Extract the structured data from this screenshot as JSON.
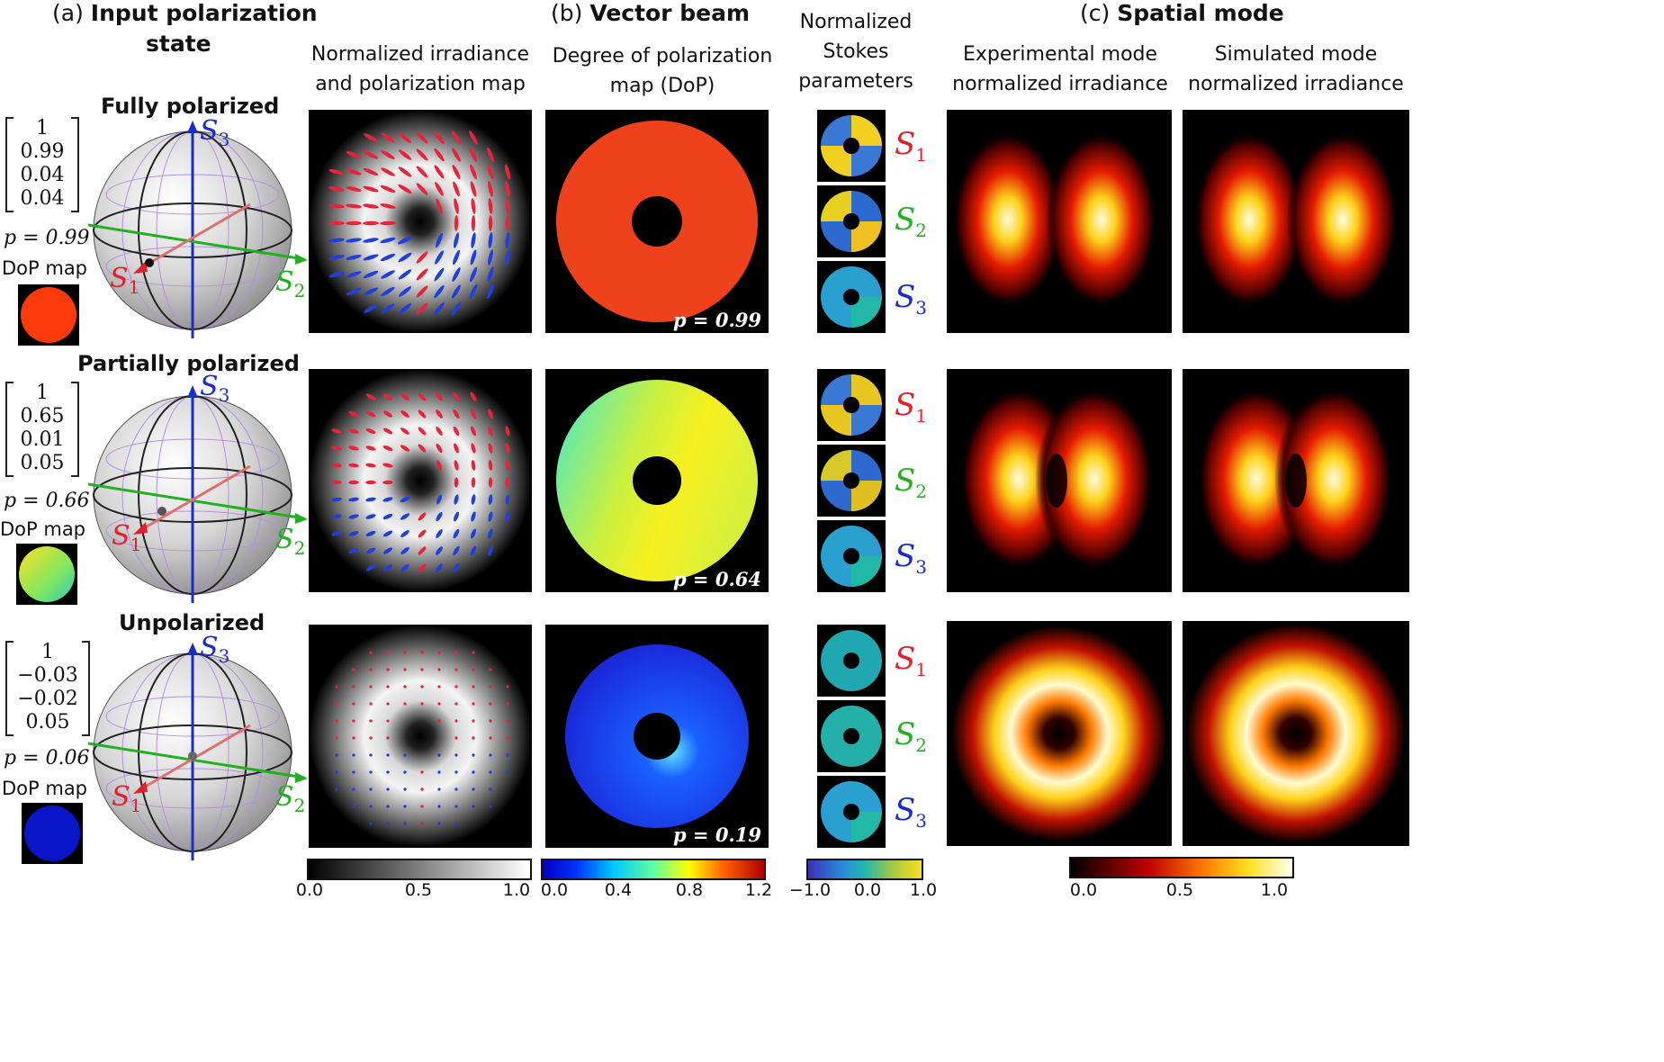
{
  "headers": {
    "a_prefix": "(a)",
    "a_bold": "Input polarization",
    "a_bold2": "state",
    "b_prefix": "(b)",
    "b_bold": "Vector beam",
    "c_prefix": "(c)",
    "c_bold": "Spatial mode"
  },
  "column_titles": {
    "irradiance_map": [
      "Normalized irradiance",
      "and polarization map"
    ],
    "dop_map": [
      "Degree of polarization",
      "map (DoP)"
    ],
    "stokes": [
      "Normalized",
      "Stokes",
      "parameters"
    ],
    "experimental": [
      "Experimental mode",
      "normalized irradiance"
    ],
    "simulated": [
      "Simulated mode",
      "normalized irradiance"
    ]
  },
  "rows": [
    {
      "title": "Fully polarized",
      "stokes_vector": [
        "1",
        "0.99",
        "0.04",
        "0.04"
      ],
      "p_label": "p = 0.99",
      "dop_label": "DoP map",
      "dop_value": 0.99,
      "dop_badge": "p = 0.99",
      "thumb_color": "#ff3a0a"
    },
    {
      "title": "Partially polarized",
      "stokes_vector": [
        "1",
        "0.65",
        "0.01",
        "0.05"
      ],
      "p_label": "p = 0.66",
      "dop_label": "DoP map",
      "dop_value": 0.64,
      "dop_badge": "p = 0.64",
      "thumb_color": "#b5e23a"
    },
    {
      "title": "Unpolarized",
      "stokes_vector": [
        "1",
        "−0.03",
        "−0.02",
        "0.05"
      ],
      "p_label": "p = 0.06",
      "dop_label": "DoP map",
      "dop_value": 0.19,
      "dop_badge": "p = 0.19",
      "thumb_color": "#0a14c8"
    }
  ],
  "sphere_axes": {
    "s1": "S",
    "s2": "S",
    "s3": "S",
    "s1_sub": "1",
    "s2_sub": "2",
    "s3_sub": "3",
    "s1_color": "#e0202a",
    "s2_color": "#22b022",
    "s3_color": "#1a2ccc"
  },
  "stokes_labels": [
    {
      "main": "S",
      "sub": "1",
      "color": "#e0202a"
    },
    {
      "main": "S",
      "sub": "2",
      "color": "#22b022"
    },
    {
      "main": "S",
      "sub": "3",
      "color": "#1a2ccc"
    }
  ],
  "colorbars": {
    "gray": {
      "ticks": [
        "0.0",
        "0.5",
        "1.0"
      ]
    },
    "jet": {
      "ticks": [
        "0.0",
        "0.4",
        "0.8",
        "1.2"
      ]
    },
    "stokes": {
      "ticks": [
        "−1.0",
        "0.0",
        "1.0"
      ]
    },
    "hot": {
      "ticks": [
        "0.0",
        "0.5",
        "1.0"
      ]
    }
  },
  "colors": {
    "vector_red": "#e8233a",
    "vector_blue": "#1f3fe0"
  }
}
